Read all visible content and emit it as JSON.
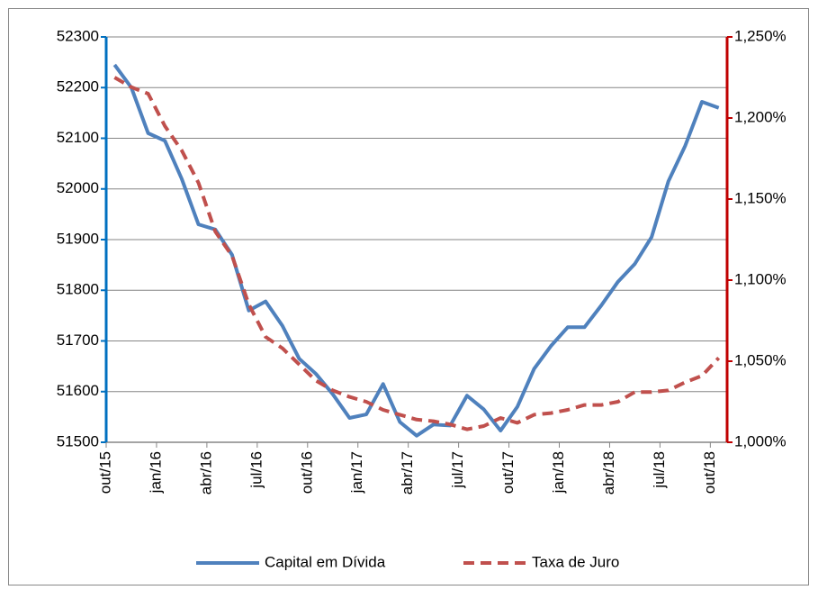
{
  "chart_data": {
    "type": "line",
    "categories": [
      "out/15",
      null,
      null,
      "jan/16",
      null,
      null,
      "abr/16",
      null,
      null,
      "jul/16",
      null,
      null,
      "out/16",
      null,
      null,
      "jan/17",
      null,
      null,
      "abr/17",
      null,
      null,
      "jul/17",
      null,
      null,
      "out/17",
      null,
      null,
      "jan/18",
      null,
      null,
      "abr/18",
      null,
      null,
      "jul/18",
      null,
      null,
      "out/18"
    ],
    "series": [
      {
        "name": "Capital em Dívida",
        "color": "#4f81bd",
        "values": [
          52245,
          52200,
          52110,
          52095,
          52020,
          51930,
          51920,
          51870,
          51760,
          51778,
          51730,
          51665,
          51635,
          51595,
          51548,
          51555,
          51615,
          51540,
          51513,
          51535,
          51533,
          51592,
          51565,
          51523,
          51570,
          51645,
          51690,
          51727,
          51727,
          51770,
          51817,
          51852,
          51905,
          52015,
          52085,
          52172,
          52160
        ]
      },
      {
        "name": "Taxa de Juro",
        "color": "#c0504d",
        "axis": "y2",
        "dashed": true,
        "values": [
          1.225,
          1.219,
          1.215,
          1.195,
          1.18,
          1.16,
          1.13,
          1.115,
          1.085,
          1.065,
          1.058,
          1.048,
          1.038,
          1.032,
          1.028,
          1.025,
          1.02,
          1.017,
          1.014,
          1.013,
          1.011,
          1.008,
          1.01,
          1.015,
          1.012,
          1.017,
          1.018,
          1.02,
          1.023,
          1.023,
          1.025,
          1.031,
          1.031,
          1.032,
          1.037,
          1.041,
          1.052
        ]
      }
    ],
    "ylim": [
      51500,
      52300
    ],
    "yticks": [
      51500,
      51600,
      51700,
      51800,
      51900,
      52000,
      52100,
      52200,
      52300
    ],
    "y2lim": [
      1.0,
      1.25
    ],
    "y2ticks": [
      {
        "value": 1.0,
        "label": "1,000%"
      },
      {
        "value": 1.05,
        "label": "1,050%"
      },
      {
        "value": 1.1,
        "label": "1,100%"
      },
      {
        "value": 1.15,
        "label": "1,150%"
      },
      {
        "value": 1.2,
        "label": "1,200%"
      },
      {
        "value": 1.25,
        "label": "1,250%"
      }
    ],
    "grid": true,
    "legend": "bottom",
    "yaxis_color": "#0070c0",
    "y2axis_color": "#c00000"
  }
}
